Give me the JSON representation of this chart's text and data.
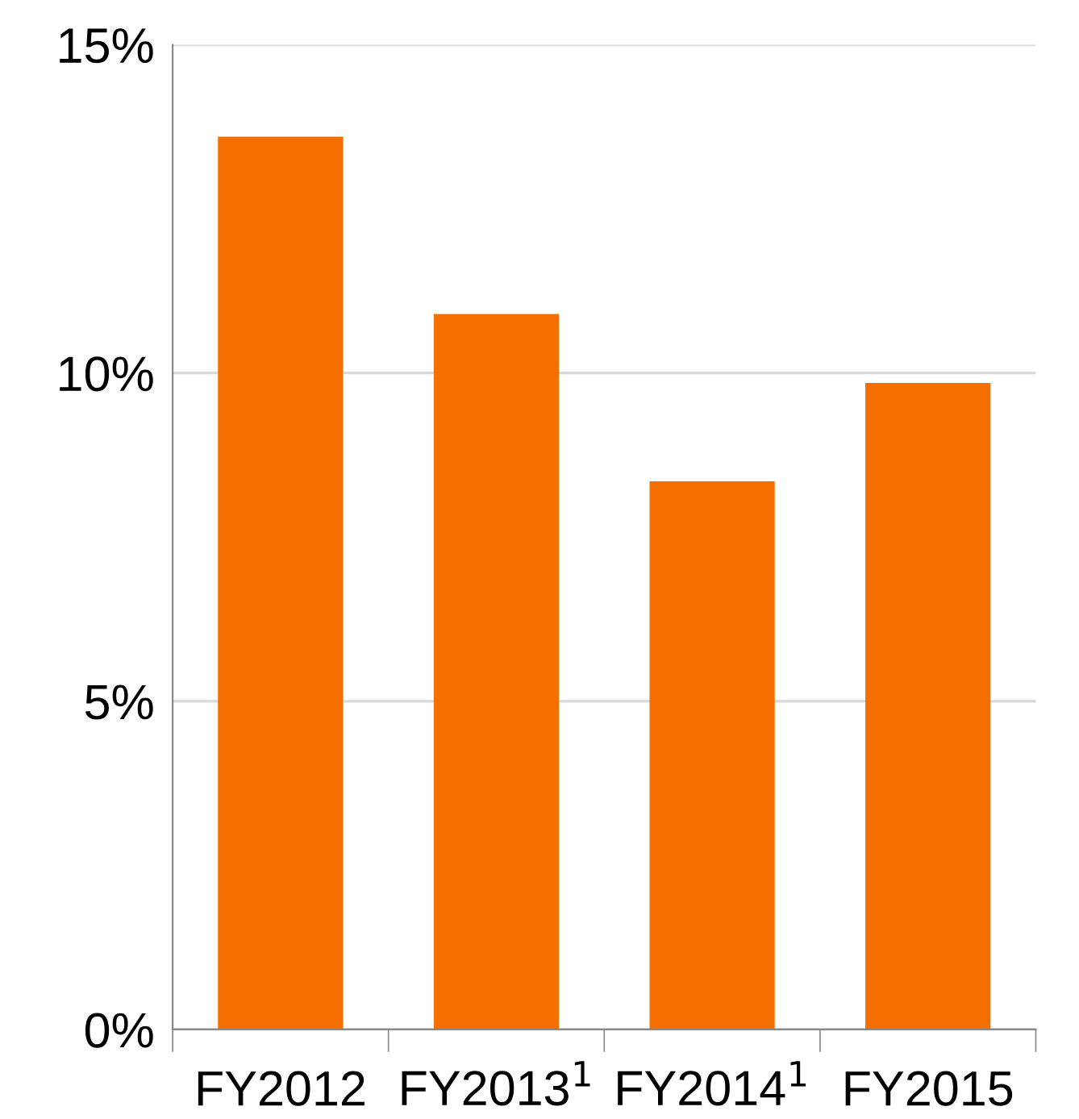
{
  "chart_data": {
    "type": "bar",
    "categories": [
      "FY2012",
      "FY2013$^{1}$",
      "FY2014$^{1}$",
      "FY2015"
    ],
    "values": [
      13.6,
      10.9,
      8.35,
      9.85
    ],
    "color": "#f46f00",
    "ylim": [
      0,
      15
    ],
    "yticks": [
      {
        "value": 0,
        "label": "0%"
      },
      {
        "value": 5,
        "label": "5%"
      },
      {
        "value": 10,
        "label": "10%"
      },
      {
        "value": 15,
        "label": "15%"
      }
    ],
    "grid": "y",
    "legend": false
  }
}
